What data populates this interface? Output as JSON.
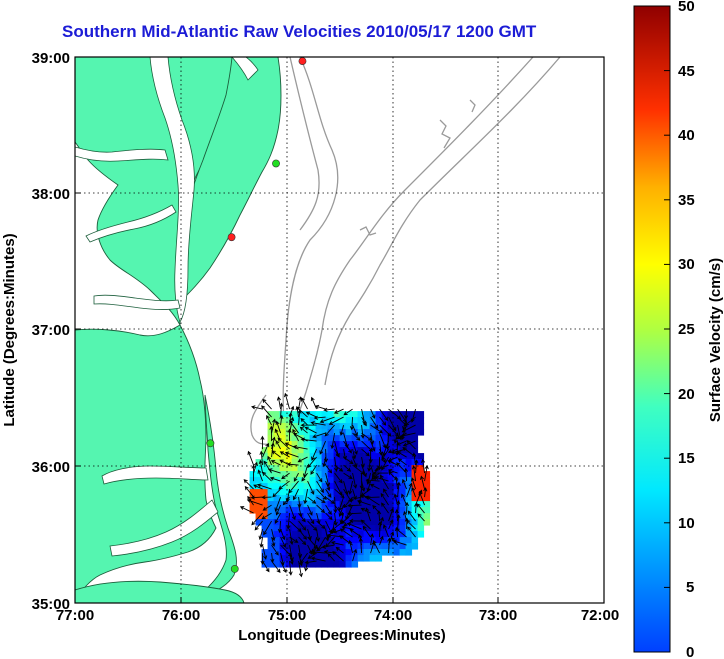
{
  "title": "Southern Mid-Atlantic Raw Velocities 2010/05/17 1200 GMT",
  "x_axis": {
    "label": "Longitude (Degrees:Minutes)",
    "ticks": [
      "77:00",
      "76:00",
      "75:00",
      "74:00",
      "73:00",
      "72:00"
    ],
    "range_deg_west": [
      77,
      72
    ]
  },
  "y_axis": {
    "label": "Latitude (Degrees:Minutes)",
    "ticks": [
      "39:00",
      "38:00",
      "37:00",
      "36:00",
      "35:00"
    ],
    "range_deg_north": [
      35,
      39
    ]
  },
  "colorbar": {
    "label": "Surface Velocity (cm/s)",
    "ticks": [
      "50",
      "45",
      "40",
      "35",
      "30",
      "25",
      "20",
      "15",
      "10",
      "5",
      "0"
    ],
    "range": [
      0,
      50
    ],
    "colormap": "jet"
  },
  "colors": {
    "land": "#55f5b0",
    "water": "#ffffff",
    "bathymetry_contour": "#9a9a9a",
    "title": "#1c1cd6",
    "grid": "#000000"
  },
  "grid": "dotted",
  "stations": [
    {
      "lon": 74.85,
      "lat": 38.97,
      "status_color": "#ff2020"
    },
    {
      "lon": 75.1,
      "lat": 38.22,
      "status_color": "#22dd22"
    },
    {
      "lon": 75.52,
      "lat": 37.68,
      "status_color": "#ff2020"
    },
    {
      "lon": 75.72,
      "lat": 36.17,
      "status_color": "#22dd22"
    },
    {
      "lon": 75.49,
      "lat": 35.25,
      "status_color": "#22dd22"
    }
  ],
  "velocity_field": {
    "lon_range": [
      73.65,
      75.35
    ],
    "lat_range": [
      35.3,
      36.45
    ],
    "typical_speed_cm_s": [
      8,
      25
    ],
    "max_speed_cm_s": 45
  }
}
